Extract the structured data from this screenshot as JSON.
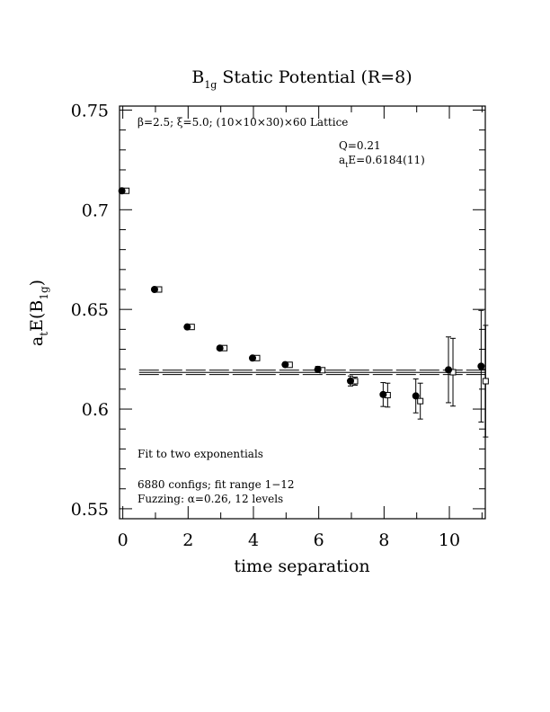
{
  "chart_data": {
    "type": "scatter",
    "title": "B",
    "title_sub": "1g",
    "title_rest": " Static Potential (R=8)",
    "xlabel": "time separation",
    "ylabel": {
      "main": "a",
      "sub1": "t",
      "mid": "E(B",
      "sub2": "1g",
      "end": ")"
    },
    "xlim": [
      -0.1,
      11.1
    ],
    "ylim": [
      0.545,
      0.752
    ],
    "x_ticks": [
      0,
      2,
      4,
      6,
      8,
      10
    ],
    "y_ticks": [
      0.55,
      0.6,
      0.65,
      0.7,
      0.75
    ],
    "y_tick_labels": [
      "0.55",
      "0.6",
      "0.65",
      "0.7",
      "0.75"
    ],
    "x_tick_labels": [
      "0",
      "2",
      "4",
      "6",
      "8",
      "10"
    ],
    "x_minor_step": 1,
    "y_minor_step": 0.01,
    "annotations": {
      "lattice_line": "β=2.5; ξ=5.0; (10×10×30)×60 Lattice",
      "q_line": "Q=0.21",
      "ate_line_prefix": "a",
      "ate_line_sub": "t",
      "ate_line_rest": "E=0.6184(11)",
      "fit_label": "Fit to two exponentials",
      "configs_line": "6880 configs; fit range 1−12",
      "fuzzing_line": "Fuzzing: α=0.26, 12 levels"
    },
    "series": [
      {
        "marker": "filled-circle",
        "points": [
          {
            "x": 0,
            "y": 0.7095,
            "err": 0.0003
          },
          {
            "x": 1,
            "y": 0.66,
            "err": 0.0004
          },
          {
            "x": 2,
            "y": 0.6412,
            "err": 0.0005
          },
          {
            "x": 3,
            "y": 0.6306,
            "err": 0.0006
          },
          {
            "x": 4,
            "y": 0.6256,
            "err": 0.0007
          },
          {
            "x": 5,
            "y": 0.6223,
            "err": 0.0009
          },
          {
            "x": 6,
            "y": 0.6199,
            "err": 0.0015
          },
          {
            "x": 7,
            "y": 0.6141,
            "err": 0.0025
          },
          {
            "x": 8,
            "y": 0.6073,
            "err": 0.006
          },
          {
            "x": 9,
            "y": 0.6066,
            "err": 0.0085
          },
          {
            "x": 10,
            "y": 0.6197,
            "err": 0.0165
          },
          {
            "x": 11,
            "y": 0.6215,
            "err": 0.028
          }
        ]
      },
      {
        "marker": "open-square",
        "points": [
          {
            "x": 0,
            "y": 0.7095,
            "err": 0.0003
          },
          {
            "x": 1,
            "y": 0.66,
            "err": 0.0004
          },
          {
            "x": 2,
            "y": 0.6412,
            "err": 0.0005
          },
          {
            "x": 3,
            "y": 0.6306,
            "err": 0.0005
          },
          {
            "x": 4,
            "y": 0.6256,
            "err": 0.0006
          },
          {
            "x": 5,
            "y": 0.6222,
            "err": 0.0007
          },
          {
            "x": 6,
            "y": 0.6195,
            "err": 0.001
          },
          {
            "x": 7,
            "y": 0.614,
            "err": 0.002
          },
          {
            "x": 8,
            "y": 0.607,
            "err": 0.006
          },
          {
            "x": 9,
            "y": 0.604,
            "err": 0.009
          },
          {
            "x": 10,
            "y": 0.6185,
            "err": 0.017
          },
          {
            "x": 11,
            "y": 0.614,
            "err": 0.028
          }
        ]
      }
    ],
    "fit": {
      "value": 0.6184,
      "error": 0.0011,
      "x_start": 0.5,
      "x_end": 11.1
    },
    "grid": false,
    "legend": "none"
  }
}
